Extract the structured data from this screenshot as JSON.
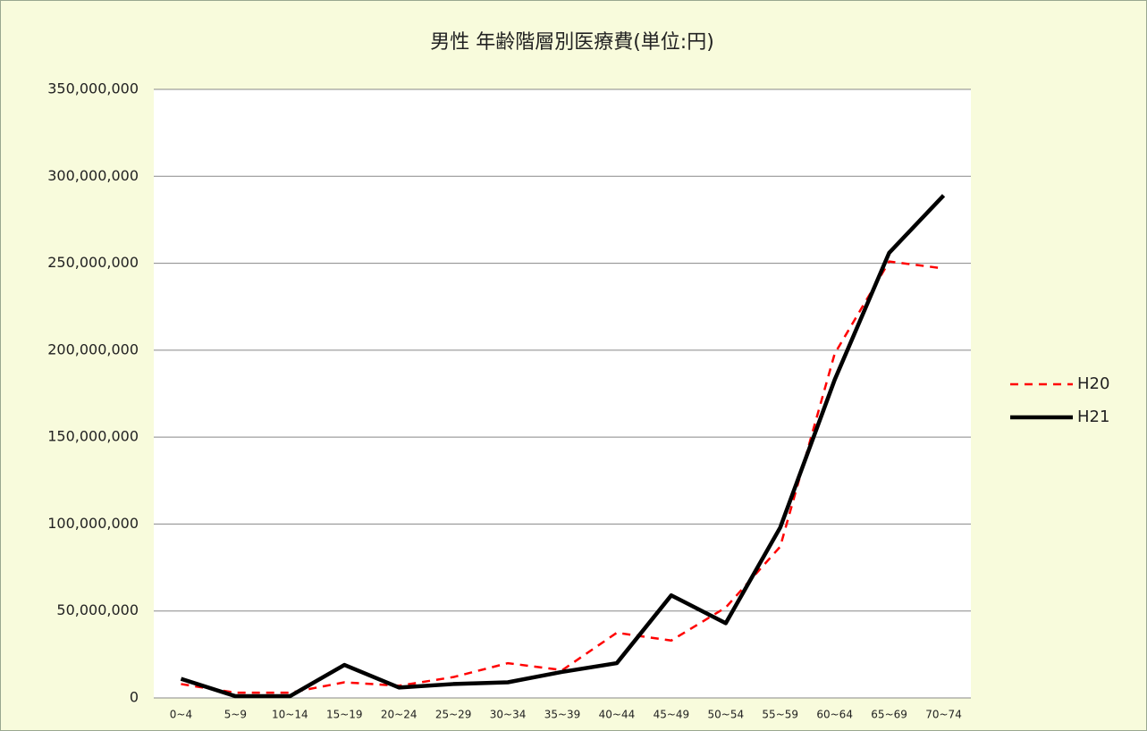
{
  "chart_data": {
    "type": "line",
    "title": "男性 年齢階層別医療費(単位:円)",
    "categories": [
      "0~4",
      "5~9",
      "10~14",
      "15~19",
      "20~24",
      "25~29",
      "30~34",
      "35~39",
      "40~44",
      "45~49",
      "50~54",
      "55~59",
      "60~64",
      "65~69",
      "70~74"
    ],
    "series": [
      {
        "name": "H20",
        "color": "#ff0000",
        "dashed": true,
        "values": [
          8000000,
          3000000,
          3000000,
          9000000,
          7000000,
          12000000,
          20000000,
          16000000,
          37500000,
          33000000,
          52000000,
          87000000,
          198000000,
          251000000,
          247000000
        ]
      },
      {
        "name": "H21",
        "color": "#000000",
        "dashed": false,
        "values": [
          11000000,
          1000000,
          1000000,
          19000000,
          6000000,
          8000000,
          9000000,
          15000000,
          20000000,
          59000000,
          43000000,
          98000000,
          183000000,
          256000000,
          289000000
        ]
      }
    ],
    "ylim": [
      0,
      350000000
    ],
    "yticks": [
      0,
      {
        "value": 50000000,
        "label": "50,000,000"
      },
      {
        "value": 100000000,
        "label": "100,000,000"
      },
      {
        "value": 150000000,
        "label": "150,000,000"
      },
      {
        "value": 200000000,
        "label": "200,000,000"
      },
      {
        "value": 250000000,
        "label": "250,000,000"
      },
      {
        "value": 300000000,
        "label": "300,000,000"
      },
      {
        "value": 350000000,
        "label": "350,000,000"
      }
    ],
    "grid": true,
    "legend": "right"
  }
}
